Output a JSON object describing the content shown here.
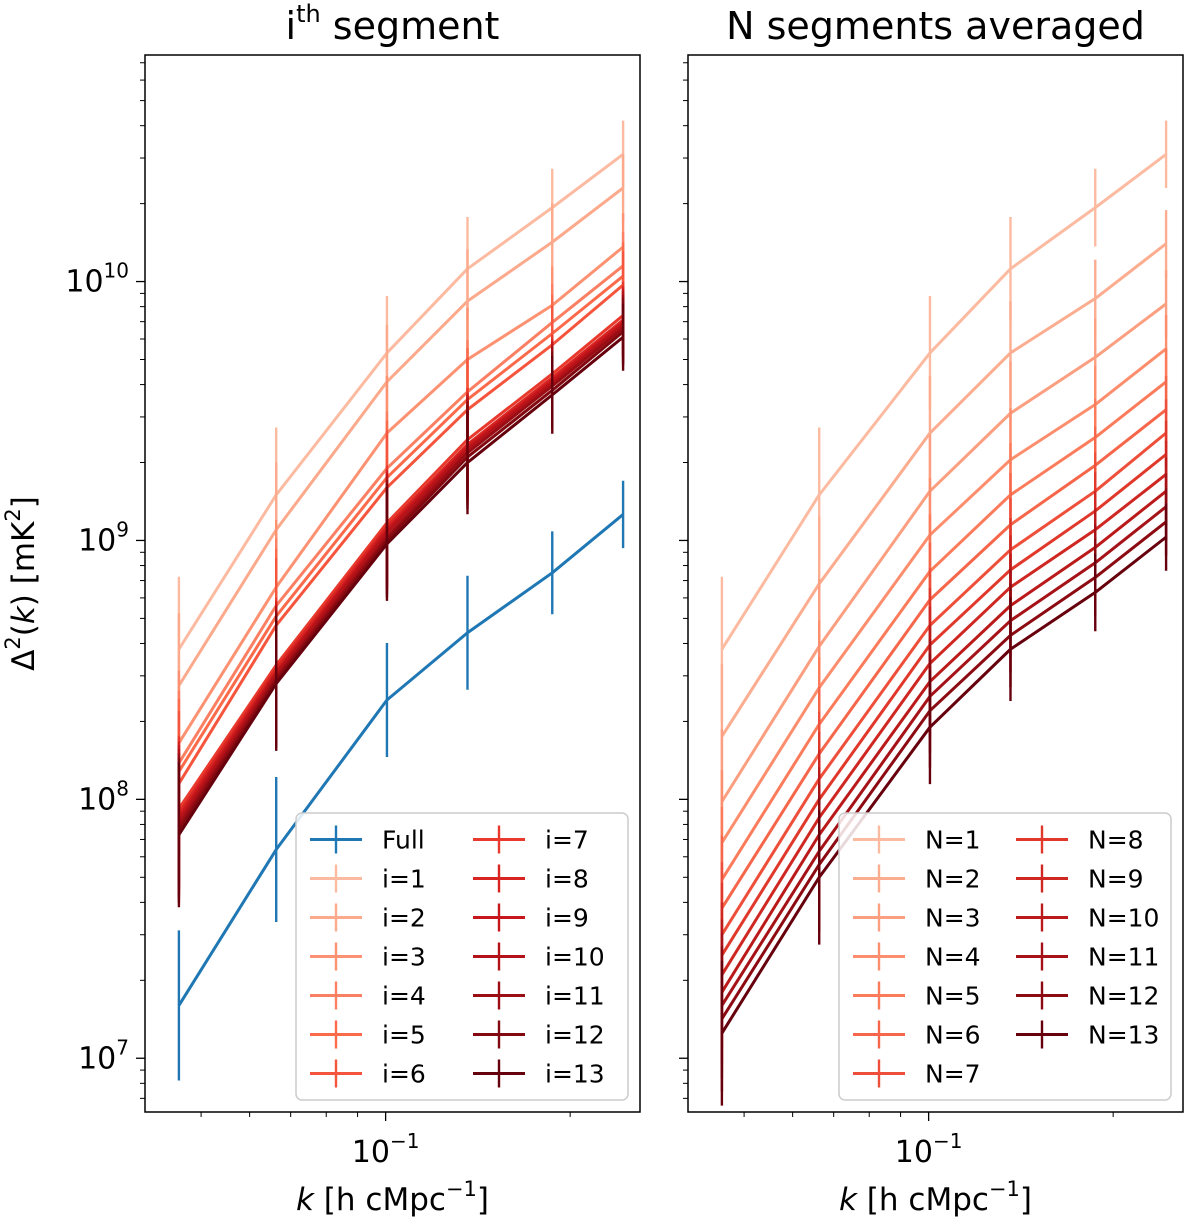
{
  "chart_data": [
    {
      "type": "line",
      "panel_id": "left",
      "title": {
        "main": "i",
        "sup": "th",
        "rest": " segment"
      },
      "xlabel": {
        "var": "k",
        "text": " [h cMpc",
        "sup": "−1",
        "close": "]"
      },
      "ylabel": {
        "main": "Δ",
        "sup1": "2",
        "mid": "(",
        "var": "k",
        "mid2": ") [mK",
        "sup2": "2",
        "close": "]"
      },
      "xscale": "log",
      "yscale": "log",
      "xlim": [
        0.0405,
        0.26
      ],
      "ylim": [
        6200000.0,
        75000000000.0
      ],
      "yticks": [
        {
          "value": 10000000.0,
          "base": "10",
          "exp": "7"
        },
        {
          "value": 100000000.0,
          "base": "10",
          "exp": "8"
        },
        {
          "value": 1000000000.0,
          "base": "10",
          "exp": "9"
        },
        {
          "value": 10000000000.0,
          "base": "10",
          "exp": "10"
        }
      ],
      "xticks": [
        {
          "value": 0.1,
          "base": "10",
          "exp": "−1"
        }
      ],
      "x": [
        0.046,
        0.0663,
        0.1005,
        0.136,
        0.187,
        0.244
      ],
      "legend": {
        "location": "lower right",
        "ncol": 2
      },
      "series": [
        {
          "name": "Full",
          "color": "#1f77b4",
          "values": [
            16000000.0,
            64000000.0,
            242000000.0,
            440000000.0,
            750000000.0,
            1260000000.0
          ],
          "errors": [
            0.29,
            0.28,
            0.22,
            0.22,
            0.16,
            0.13
          ]
        },
        {
          "name": "i=1",
          "color": "#fcbba1",
          "values": [
            380000000.0,
            1500000000.0,
            5300000000.0,
            11200000000.0,
            19300000000.0,
            31000000000.0
          ],
          "errors": [
            0.28,
            0.26,
            0.22,
            0.2,
            0.15,
            0.13
          ]
        },
        {
          "name": "i=2",
          "color": "#fca98c",
          "values": [
            275000000.0,
            1100000000.0,
            4100000000.0,
            8400000000.0,
            14200000000.0,
            23000000000.0
          ],
          "errors": [
            0.28,
            0.26,
            0.22,
            0.2,
            0.15,
            0.13
          ]
        },
        {
          "name": "i=3",
          "color": "#fc9272",
          "values": [
            165000000.0,
            660000000.0,
            2600000000.0,
            5000000000.0,
            8100000000.0,
            13600000000.0
          ],
          "errors": [
            0.28,
            0.26,
            0.22,
            0.2,
            0.15,
            0.13
          ]
        },
        {
          "name": "i=4",
          "color": "#fb7f62",
          "values": [
            138000000.0,
            560000000.0,
            1900000000.0,
            3750000000.0,
            6950000000.0,
            11500000000.0
          ],
          "errors": [
            0.28,
            0.26,
            0.22,
            0.2,
            0.15,
            0.13
          ]
        },
        {
          "name": "i=5",
          "color": "#fb6a4a",
          "values": [
            128000000.0,
            510000000.0,
            1750000000.0,
            3500000000.0,
            6300000000.0,
            10500000000.0
          ],
          "errors": [
            0.28,
            0.26,
            0.22,
            0.2,
            0.15,
            0.13
          ]
        },
        {
          "name": "i=6",
          "color": "#f5553c",
          "values": [
            115000000.0,
            470000000.0,
            1600000000.0,
            3200000000.0,
            5700000000.0,
            9700000000.0
          ],
          "errors": [
            0.28,
            0.26,
            0.22,
            0.2,
            0.15,
            0.13
          ]
        },
        {
          "name": "i=7",
          "color": "#e9392d",
          "values": [
            92000000.0,
            330000000.0,
            1170000000.0,
            2450000000.0,
            4400000000.0,
            7400000000.0
          ],
          "errors": [
            0.28,
            0.26,
            0.22,
            0.2,
            0.15,
            0.13
          ]
        },
        {
          "name": "i=8",
          "color": "#d92522",
          "values": [
            88000000.0,
            320000000.0,
            1130000000.0,
            2350000000.0,
            4250000000.0,
            7100000000.0
          ],
          "errors": [
            0.28,
            0.26,
            0.22,
            0.2,
            0.15,
            0.13
          ]
        },
        {
          "name": "i=9",
          "color": "#c7171c",
          "values": [
            85000000.0,
            310000000.0,
            1100000000.0,
            2300000000.0,
            4150000000.0,
            6950000000.0
          ],
          "errors": [
            0.28,
            0.26,
            0.22,
            0.2,
            0.15,
            0.13
          ]
        },
        {
          "name": "i=10",
          "color": "#b21218",
          "values": [
            82000000.0,
            305000000.0,
            1070000000.0,
            2250000000.0,
            4050000000.0,
            6800000000.0
          ],
          "errors": [
            0.28,
            0.26,
            0.22,
            0.2,
            0.15,
            0.13
          ]
        },
        {
          "name": "i=11",
          "color": "#9b0d14",
          "values": [
            79000000.0,
            295000000.0,
            1030000000.0,
            2180000000.0,
            3950000000.0,
            6600000000.0
          ],
          "errors": [
            0.28,
            0.26,
            0.22,
            0.2,
            0.15,
            0.13
          ]
        },
        {
          "name": "i=12",
          "color": "#830910",
          "values": [
            76000000.0,
            288000000.0,
            1000000000.0,
            2100000000.0,
            3800000000.0,
            6400000000.0
          ],
          "errors": [
            0.28,
            0.26,
            0.22,
            0.2,
            0.15,
            0.13
          ]
        },
        {
          "name": "i=13",
          "color": "#67000d",
          "values": [
            73000000.0,
            280000000.0,
            970000000.0,
            2000000000.0,
            3650000000.0,
            6100000000.0
          ],
          "errors": [
            0.28,
            0.26,
            0.22,
            0.2,
            0.15,
            0.13
          ]
        }
      ]
    },
    {
      "type": "line",
      "panel_id": "right",
      "title": {
        "main": "N segments averaged"
      },
      "xlabel": {
        "var": "k",
        "text": " [h cMpc",
        "sup": "−1",
        "close": "]"
      },
      "xscale": "log",
      "yscale": "log",
      "xlim": [
        0.0405,
        0.26
      ],
      "ylim": [
        6200000.0,
        75000000000.0
      ],
      "yticks_labeled": false,
      "xticks": [
        {
          "value": 0.1,
          "base": "10",
          "exp": "−1"
        }
      ],
      "x": [
        0.046,
        0.0663,
        0.1005,
        0.136,
        0.187,
        0.244
      ],
      "legend": {
        "location": "lower right",
        "ncol": 2
      },
      "series": [
        {
          "name": "N=1",
          "color": "#fcbba1",
          "values": [
            380000000.0,
            1500000000.0,
            5300000000.0,
            11200000000.0,
            19300000000.0,
            31000000000.0
          ],
          "errors": [
            0.28,
            0.26,
            0.22,
            0.2,
            0.15,
            0.13
          ]
        },
        {
          "name": "N=2",
          "color": "#fcad90",
          "values": [
            175000000.0,
            680000000.0,
            2600000000.0,
            5300000000.0,
            8600000000.0,
            14000000000.0
          ],
          "errors": [
            0.28,
            0.26,
            0.22,
            0.2,
            0.15,
            0.13
          ]
        },
        {
          "name": "N=3",
          "color": "#fc9f81",
          "values": [
            98000000.0,
            390000000.0,
            1550000000.0,
            3100000000.0,
            5100000000.0,
            8200000000.0
          ],
          "errors": [
            0.28,
            0.26,
            0.22,
            0.2,
            0.15,
            0.13
          ]
        },
        {
          "name": "N=4",
          "color": "#fc8e6e",
          "values": [
            68000000.0,
            270000000.0,
            1050000000.0,
            2050000000.0,
            3350000000.0,
            5500000000.0
          ],
          "errors": [
            0.28,
            0.26,
            0.22,
            0.2,
            0.15,
            0.13
          ]
        },
        {
          "name": "N=5",
          "color": "#fb7b5b",
          "values": [
            49000000.0,
            195000000.0,
            760000000.0,
            1500000000.0,
            2500000000.0,
            4100000000.0
          ],
          "errors": [
            0.28,
            0.26,
            0.22,
            0.2,
            0.15,
            0.13
          ]
        },
        {
          "name": "N=6",
          "color": "#f6664a",
          "values": [
            38000000.0,
            150000000.0,
            590000000.0,
            1150000000.0,
            1950000000.0,
            3200000000.0
          ],
          "errors": [
            0.28,
            0.26,
            0.22,
            0.2,
            0.15,
            0.13
          ]
        },
        {
          "name": "N=7",
          "color": "#ee4f3a",
          "values": [
            30000000.0,
            120000000.0,
            470000000.0,
            920000000.0,
            1550000000.0,
            2600000000.0
          ],
          "errors": [
            0.28,
            0.26,
            0.22,
            0.2,
            0.15,
            0.13
          ]
        },
        {
          "name": "N=8",
          "color": "#e0392c",
          "values": [
            25000000.0,
            100000000.0,
            395000000.0,
            770000000.0,
            1300000000.0,
            2150000000.0
          ],
          "errors": [
            0.28,
            0.26,
            0.22,
            0.2,
            0.15,
            0.13
          ]
        },
        {
          "name": "N=9",
          "color": "#cf2722",
          "values": [
            21000000.0,
            85000000.0,
            335000000.0,
            660000000.0,
            1100000000.0,
            1800000000.0
          ],
          "errors": [
            0.28,
            0.26,
            0.22,
            0.2,
            0.15,
            0.13
          ]
        },
        {
          "name": "N=10",
          "color": "#bb1a1b",
          "values": [
            18000000.0,
            73000000.0,
            285000000.0,
            560000000.0,
            940000000.0,
            1550000000.0
          ],
          "errors": [
            0.28,
            0.26,
            0.22,
            0.2,
            0.15,
            0.13
          ]
        },
        {
          "name": "N=11",
          "color": "#a51217",
          "values": [
            16000000.0,
            63000000.0,
            250000000.0,
            490000000.0,
            820000000.0,
            1350000000.0
          ],
          "errors": [
            0.28,
            0.26,
            0.22,
            0.2,
            0.15,
            0.13
          ]
        },
        {
          "name": "N=12",
          "color": "#8c0b12",
          "values": [
            14200000.0,
            56000000.0,
            220000000.0,
            430000000.0,
            720000000.0,
            1180000000.0
          ],
          "errors": [
            0.28,
            0.26,
            0.22,
            0.2,
            0.15,
            0.13
          ]
        },
        {
          "name": "N=13",
          "color": "#67000d",
          "values": [
            12500000.0,
            50000000.0,
            190000000.0,
            380000000.0,
            630000000.0,
            1030000000.0
          ],
          "errors": [
            0.28,
            0.26,
            0.22,
            0.2,
            0.15,
            0.13
          ]
        }
      ]
    }
  ]
}
